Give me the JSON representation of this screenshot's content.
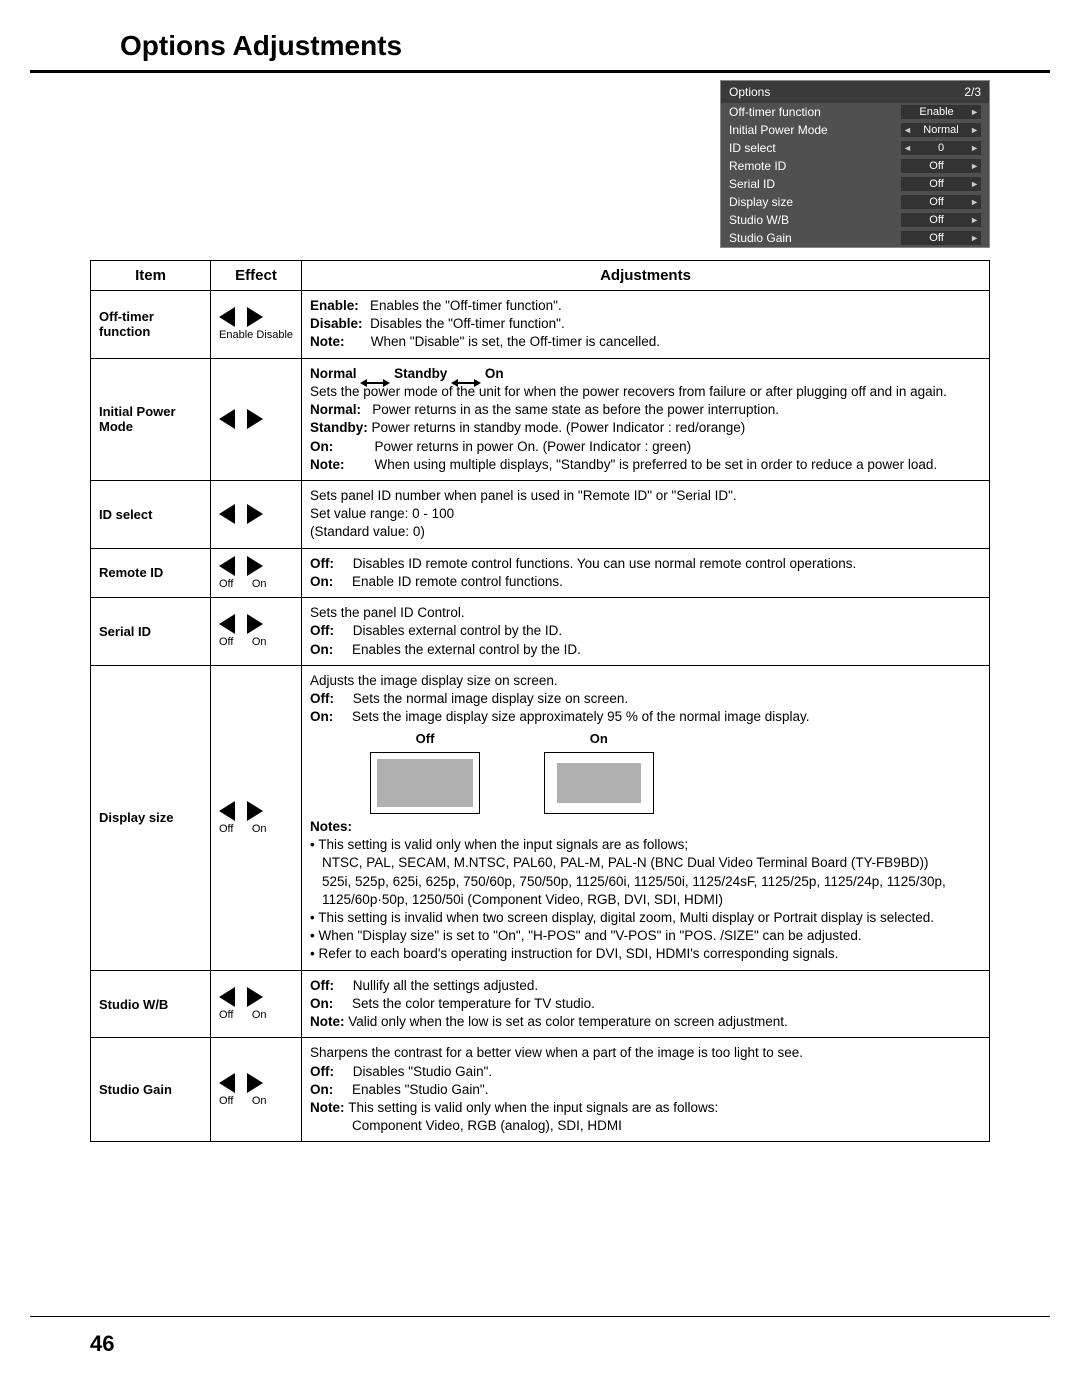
{
  "page": {
    "title": "Options Adjustments",
    "number": "46"
  },
  "osd": {
    "title": "Options",
    "page": "2/3",
    "rows": [
      {
        "label": "Off-timer function",
        "value": "Enable",
        "left": false,
        "right": true
      },
      {
        "label": "Initial Power Mode",
        "value": "Normal",
        "left": true,
        "right": true
      },
      {
        "label": "ID select",
        "value": "0",
        "left": true,
        "right": true
      },
      {
        "label": "Remote ID",
        "value": "Off",
        "left": false,
        "right": true
      },
      {
        "label": "Serial ID",
        "value": "Off",
        "left": false,
        "right": true
      },
      {
        "label": "Display size",
        "value": "Off",
        "left": false,
        "right": true
      },
      {
        "label": "Studio W/B",
        "value": "Off",
        "left": false,
        "right": true
      },
      {
        "label": "Studio Gain",
        "value": "Off",
        "left": false,
        "right": true
      }
    ]
  },
  "table": {
    "headers": {
      "item": "Item",
      "effect": "Effect",
      "adj": "Adjustments"
    },
    "rows": {
      "off_timer": {
        "item": "Off-timer function",
        "effect_left": "Enable",
        "effect_right": "Disable",
        "l1b": "Enable:",
        "l1": "Enables the \"Off-timer function\".",
        "l2b": "Disable:",
        "l2": "Disables the \"Off-timer function\".",
        "l3b": "Note:",
        "l3": "When \"Disable\" is set, the Off-timer is cancelled."
      },
      "ipm": {
        "item": "Initial Power Mode",
        "header_a": "Normal",
        "header_b": "Standby",
        "header_c": "On",
        "intro": "Sets the power mode of the unit for when the power recovers from failure or after plugging off and in again.",
        "l1b": "Normal:",
        "l1": "Power returns in as the same state as before the power interruption.",
        "l2b": "Standby:",
        "l2": "Power returns in standby mode. (Power Indicator : red/orange)",
        "l3b": "On:",
        "l3": "Power returns in power On. (Power Indicator : green)",
        "l4b": "Note:",
        "l4": "When using multiple displays, \"Standby\" is preferred to be set in order to reduce a power load."
      },
      "id_select": {
        "item": "ID select",
        "l1": "Sets panel ID number when panel is used in \"Remote ID\" or \"Serial ID\".",
        "l2": "Set value range: 0 - 100",
        "l3": "(Standard value: 0)"
      },
      "remote_id": {
        "item": "Remote ID",
        "effect_left": "Off",
        "effect_right": "On",
        "l1b": "Off:",
        "l1": "Disables ID remote control functions. You can use normal remote control operations.",
        "l2b": "On:",
        "l2": "Enable ID remote control functions."
      },
      "serial_id": {
        "item": "Serial ID",
        "effect_left": "Off",
        "effect_right": "On",
        "intro": "Sets the panel ID Control.",
        "l1b": "Off:",
        "l1": "Disables external control by the ID.",
        "l2b": "On:",
        "l2": "Enables the external control by the ID."
      },
      "display_size": {
        "item": "Display size",
        "effect_left": "Off",
        "effect_right": "On",
        "intro": "Adjusts the image display size on screen.",
        "l1b": "Off:",
        "l1": "Sets the normal image display size on screen.",
        "l2b": "On:",
        "l2": "Sets the image display size approximately 95 % of the normal image display.",
        "demo_off": "Off",
        "demo_on": "On",
        "notes_label": "Notes:",
        "n1": "• This setting is valid only when the input signals are as follows;",
        "n1a": "NTSC, PAL, SECAM, M.NTSC, PAL60, PAL-M, PAL-N (BNC Dual Video Terminal Board (TY-FB9BD))",
        "n1b": "525i, 525p, 625i, 625p, 750/60p, 750/50p, 1125/60i, 1125/50i, 1125/24sF, 1125/25p, 1125/24p, 1125/30p, 1125/60p·50p, 1250/50i (Component Video, RGB, DVI, SDI, HDMI)",
        "n2": "• This setting is invalid when two screen display, digital zoom, Multi display or Portrait display is selected.",
        "n3": "• When \"Display size\" is set to \"On\", \"H-POS\" and \"V-POS\" in \"POS. /SIZE\" can be adjusted.",
        "n4": "• Refer to each board's operating instruction for DVI, SDI, HDMI's corresponding signals."
      },
      "studio_wb": {
        "item": "Studio W/B",
        "effect_left": "Off",
        "effect_right": "On",
        "l1b": "Off:",
        "l1": "Nullify all the settings adjusted.",
        "l2b": "On:",
        "l2": "Sets the color temperature for TV studio.",
        "l3b": "Note:",
        "l3": "Valid only when the low is set as color temperature on screen adjustment."
      },
      "studio_gain": {
        "item": "Studio Gain",
        "effect_left": "Off",
        "effect_right": "On",
        "intro": "Sharpens the contrast for a better view when a part of the image is too light to see.",
        "l1b": "Off:",
        "l1": "Disables \"Studio Gain\".",
        "l2b": "On:",
        "l2": "Enables \"Studio Gain\".",
        "l3b": "Note:",
        "l3": "This setting is valid only when the input signals are as follows:",
        "l4": "Component Video, RGB (analog), SDI, HDMI"
      }
    }
  }
}
